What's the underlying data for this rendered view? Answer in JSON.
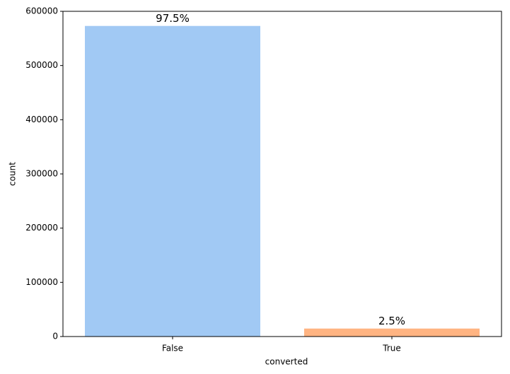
{
  "chart_data": {
    "type": "bar",
    "x_label": "converted",
    "y_label": "count",
    "categories": [
      "False",
      "True"
    ],
    "values": [
      573000,
      14700
    ],
    "colors": [
      "#a1c9f4",
      "#ffb482"
    ],
    "annotations": [
      "97.5%",
      "2.5%"
    ],
    "ylim": [
      0,
      600000
    ],
    "yticks": [
      0,
      100000,
      200000,
      300000,
      400000,
      500000,
      600000
    ],
    "grid": false
  }
}
